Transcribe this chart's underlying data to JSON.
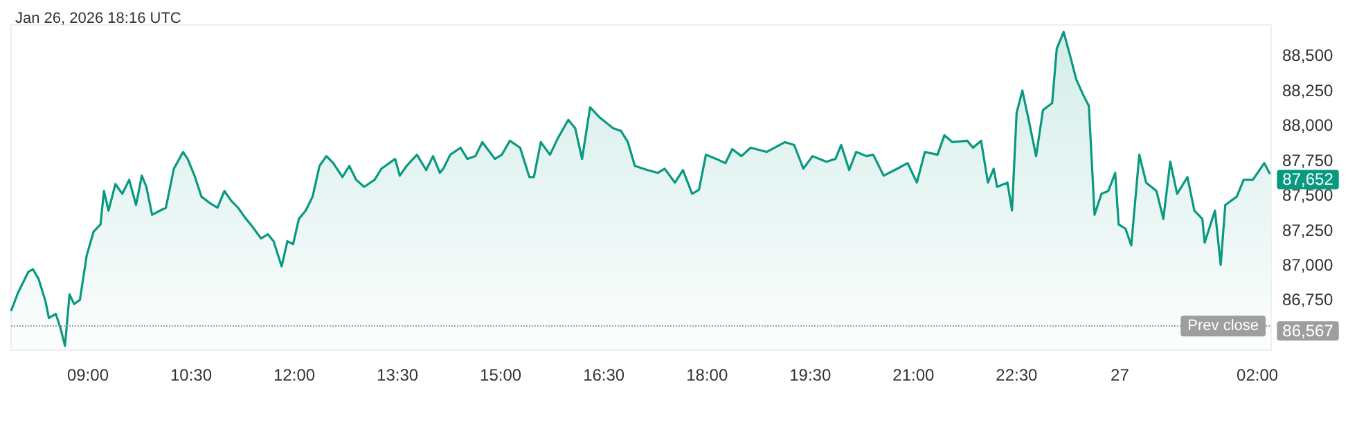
{
  "chart_data": {
    "type": "area",
    "title": "Jan 26, 2026 18:16 UTC",
    "color": "#089981",
    "marker": "none",
    "x": [
      "2026-01-26T07:53",
      "2026-01-26T07:59",
      "2026-01-26T08:08",
      "2026-01-26T08:12",
      "2026-01-26T08:17",
      "2026-01-26T08:23",
      "2026-01-26T08:26",
      "2026-01-26T08:32",
      "2026-01-26T08:36",
      "2026-01-26T08:40",
      "2026-01-26T08:44",
      "2026-01-26T08:48",
      "2026-01-26T08:53",
      "2026-01-26T08:59",
      "2026-01-26T09:05",
      "2026-01-26T09:11",
      "2026-01-26T09:14",
      "2026-01-26T09:18",
      "2026-01-26T09:24",
      "2026-01-26T09:30",
      "2026-01-26T09:36",
      "2026-01-26T09:42",
      "2026-01-26T09:47",
      "2026-01-26T09:51",
      "2026-01-26T09:56",
      "2026-01-26T10:03",
      "2026-01-26T10:08",
      "2026-01-26T10:15",
      "2026-01-26T10:23",
      "2026-01-26T10:27",
      "2026-01-26T10:33",
      "2026-01-26T10:39",
      "2026-01-26T10:47",
      "2026-01-26T10:53",
      "2026-01-26T10:59",
      "2026-01-26T11:05",
      "2026-01-26T11:11",
      "2026-01-26T11:17",
      "2026-01-26T11:23",
      "2026-01-26T11:31",
      "2026-01-26T11:37",
      "2026-01-26T11:42",
      "2026-01-26T11:49",
      "2026-01-26T11:54",
      "2026-01-26T11:59",
      "2026-01-26T12:04",
      "2026-01-26T12:10",
      "2026-01-26T12:16",
      "2026-01-26T12:22",
      "2026-01-26T12:28",
      "2026-01-26T12:34",
      "2026-01-26T12:42",
      "2026-01-26T12:48",
      "2026-01-26T12:54",
      "2026-01-26T13:01",
      "2026-01-26T13:10",
      "2026-01-26T13:16",
      "2026-01-26T13:28",
      "2026-01-26T13:32",
      "2026-01-26T13:38",
      "2026-01-26T13:47",
      "2026-01-26T13:55",
      "2026-01-26T14:01",
      "2026-01-26T14:07",
      "2026-01-26T14:10",
      "2026-01-26T14:16",
      "2026-01-26T14:25",
      "2026-01-26T14:31",
      "2026-01-26T14:38",
      "2026-01-26T14:44",
      "2026-01-26T14:55",
      "2026-01-26T15:01",
      "2026-01-26T15:08",
      "2026-01-26T15:17",
      "2026-01-26T15:25",
      "2026-01-26T15:29",
      "2026-01-26T15:35",
      "2026-01-26T15:43",
      "2026-01-26T15:50",
      "2026-01-26T15:59",
      "2026-01-26T16:05",
      "2026-01-26T16:11",
      "2026-01-26T16:18",
      "2026-01-26T16:26",
      "2026-01-26T16:38",
      "2026-01-26T16:45",
      "2026-01-26T16:51",
      "2026-01-26T16:57",
      "2026-01-26T17:08",
      "2026-01-26T17:17",
      "2026-01-26T17:23",
      "2026-01-26T17:32",
      "2026-01-26T17:39",
      "2026-01-26T17:47",
      "2026-01-26T17:53",
      "2026-01-26T17:59",
      "2026-01-26T18:08",
      "2026-01-26T18:16",
      "2026-01-26T18:22",
      "2026-01-26T18:30",
      "2026-01-26T18:38",
      "2026-01-26T18:52",
      "2026-01-26T19:08",
      "2026-01-26T19:16",
      "2026-01-26T19:24",
      "2026-01-26T19:32",
      "2026-01-26T19:44",
      "2026-01-26T19:52",
      "2026-01-26T19:57",
      "2026-01-26T20:04",
      "2026-01-26T20:10",
      "2026-01-26T20:19",
      "2026-01-26T20:25",
      "2026-01-26T20:34",
      "2026-01-26T20:46",
      "2026-01-26T20:55",
      "2026-01-26T21:03",
      "2026-01-26T21:10",
      "2026-01-26T21:21",
      "2026-01-26T21:27",
      "2026-01-26T21:34",
      "2026-01-26T21:47",
      "2026-01-26T21:52",
      "2026-01-26T21:59",
      "2026-01-26T22:05",
      "2026-01-26T22:10",
      "2026-01-26T22:13",
      "2026-01-26T22:22",
      "2026-01-26T22:26",
      "2026-01-26T22:30",
      "2026-01-26T22:35",
      "2026-01-26T22:40",
      "2026-01-26T22:47",
      "2026-01-26T22:53",
      "2026-01-26T23:01",
      "2026-01-26T23:05",
      "2026-01-26T23:11",
      "2026-01-26T23:16",
      "2026-01-26T23:22",
      "2026-01-26T23:28",
      "2026-01-26T23:33",
      "2026-01-26T23:38",
      "2026-01-26T23:44",
      "2026-01-26T23:50",
      "2026-01-26T23:56",
      "2026-01-26T23:59",
      "2026-01-27T00:05",
      "2026-01-27T00:10",
      "2026-01-27T00:17",
      "2026-01-27T00:23",
      "2026-01-27T00:32",
      "2026-01-27T00:38",
      "2026-01-27T00:44",
      "2026-01-27T00:50",
      "2026-01-27T00:59",
      "2026-01-27T01:05",
      "2026-01-27T01:12",
      "2026-01-27T01:14",
      "2026-01-27T01:23",
      "2026-01-27T01:28",
      "2026-01-27T01:32",
      "2026-01-27T01:42",
      "2026-01-27T01:48",
      "2026-01-27T01:56",
      "2026-01-27T02:06",
      "2026-01-27T02:11"
    ],
    "values": [
      86670,
      86800,
      86950,
      86970,
      86900,
      86740,
      86620,
      86650,
      86550,
      86420,
      86790,
      86720,
      86750,
      87070,
      87240,
      87290,
      87530,
      87390,
      87580,
      87510,
      87610,
      87430,
      87640,
      87560,
      87360,
      87390,
      87410,
      87690,
      87810,
      87760,
      87640,
      87490,
      87440,
      87410,
      87530,
      87460,
      87410,
      87340,
      87280,
      87190,
      87220,
      87170,
      86990,
      87170,
      87150,
      87330,
      87390,
      87490,
      87710,
      87780,
      87730,
      87630,
      87710,
      87610,
      87560,
      87610,
      87690,
      87760,
      87640,
      87710,
      87790,
      87680,
      87780,
      87660,
      87690,
      87790,
      87840,
      87760,
      87780,
      87880,
      87760,
      87790,
      87890,
      87840,
      87630,
      87630,
      87880,
      87790,
      87910,
      88040,
      87980,
      87760,
      88130,
      88060,
      87980,
      87960,
      87880,
      87710,
      87680,
      87660,
      87690,
      87590,
      87680,
      87510,
      87540,
      87790,
      87760,
      87730,
      87830,
      87780,
      87840,
      87810,
      87880,
      87860,
      87690,
      87780,
      87740,
      87760,
      87860,
      87680,
      87810,
      87780,
      87790,
      87640,
      87690,
      87730,
      87590,
      87810,
      87790,
      87930,
      87880,
      87890,
      87840,
      87890,
      87590,
      87690,
      87560,
      87590,
      87390,
      88090,
      88250,
      88060,
      87780,
      88110,
      88160,
      88550,
      88670,
      88520,
      88330,
      88220,
      88140,
      87360,
      87510,
      87530,
      87660,
      87290,
      87260,
      87140,
      87790,
      87590,
      87530,
      87330,
      87740,
      87510,
      87630,
      87390,
      87330,
      87160,
      87390,
      87000,
      87430,
      87490,
      87610,
      87610,
      87730,
      87652
    ],
    "xlim": [
      "2026-01-26T07:53",
      "2026-01-27T02:12"
    ],
    "xticks": [
      {
        "value": "2026-01-26T09:00",
        "label": "09:00"
      },
      {
        "value": "2026-01-26T10:30",
        "label": "10:30"
      },
      {
        "value": "2026-01-26T12:00",
        "label": "12:00"
      },
      {
        "value": "2026-01-26T13:30",
        "label": "13:30"
      },
      {
        "value": "2026-01-26T15:00",
        "label": "15:00"
      },
      {
        "value": "2026-01-26T16:30",
        "label": "16:30"
      },
      {
        "value": "2026-01-26T18:00",
        "label": "18:00"
      },
      {
        "value": "2026-01-26T19:30",
        "label": "19:30"
      },
      {
        "value": "2026-01-26T21:00",
        "label": "21:00"
      },
      {
        "value": "2026-01-26T22:30",
        "label": "22:30"
      },
      {
        "value": "2026-01-27T00:00",
        "label": "27"
      },
      {
        "value": "2026-01-27T02:00",
        "label": "02:00"
      }
    ],
    "ylim": [
      86390,
      88720
    ],
    "yticks": [
      {
        "value": 86750,
        "label": "86,750"
      },
      {
        "value": 87000,
        "label": "87,000"
      },
      {
        "value": 87250,
        "label": "87,250"
      },
      {
        "value": 87500,
        "label": "87,500"
      },
      {
        "value": 87750,
        "label": "87,750"
      },
      {
        "value": 88000,
        "label": "88,000"
      },
      {
        "value": 88250,
        "label": "88,250"
      },
      {
        "value": 88500,
        "label": "88,500"
      }
    ],
    "ref_lines": [
      {
        "axis": "y",
        "value": 86567,
        "label": "Prev close",
        "line_style": "dotted",
        "color": "#9e9e9e"
      }
    ],
    "annotations": [
      {
        "text": "87,652",
        "x": "2026-01-27T02:11",
        "y": 87652
      },
      {
        "text": "86,567",
        "x": "2026-01-27T02:11",
        "y": 86567
      }
    ]
  }
}
